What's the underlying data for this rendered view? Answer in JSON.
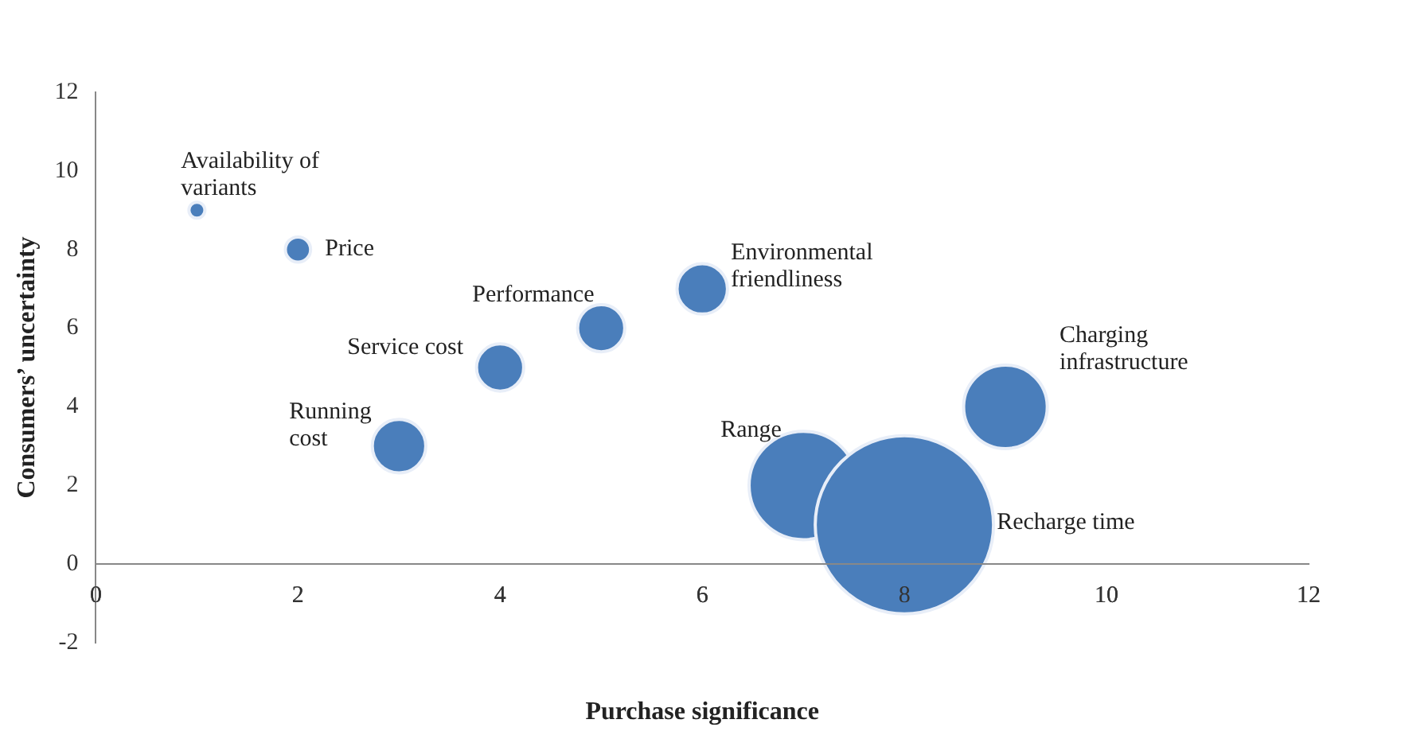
{
  "chart_data": {
    "type": "bubble",
    "xlabel": "Purchase significance",
    "ylabel": "Consumers’ uncertainty",
    "x": [
      1,
      2,
      3,
      4,
      5,
      6,
      7,
      8,
      9
    ],
    "values": [
      9,
      8,
      3,
      5,
      6,
      7,
      2,
      1,
      4
    ],
    "sizes": [
      0.008,
      0.02,
      0.09,
      0.07,
      0.07,
      0.08,
      0.37,
      1,
      0.22
    ],
    "color": "#4a7ebb",
    "xlim": [
      0,
      12
    ],
    "xticks": [
      0,
      2,
      4,
      6,
      8,
      10,
      12
    ],
    "ylim": [
      -2,
      12
    ],
    "yticks": [
      -2,
      0,
      2,
      4,
      6,
      8,
      10,
      12
    ],
    "grid": false,
    "legend": false,
    "annotations": [
      {
        "text": "Availability of variants",
        "x": 1,
        "y": 9
      },
      {
        "text": "Price",
        "x": 2,
        "y": 8
      },
      {
        "text": "Running cost",
        "x": 3,
        "y": 3
      },
      {
        "text": "Service cost",
        "x": 4,
        "y": 5
      },
      {
        "text": "Performance",
        "x": 5,
        "y": 6
      },
      {
        "text": "Environmental friendliness",
        "x": 6,
        "y": 7
      },
      {
        "text": "Range",
        "x": 7,
        "y": 2
      },
      "Recharge time",
      {
        "text": "Charging infrastructure",
        "x": 9,
        "y": 4
      }
    ]
  }
}
